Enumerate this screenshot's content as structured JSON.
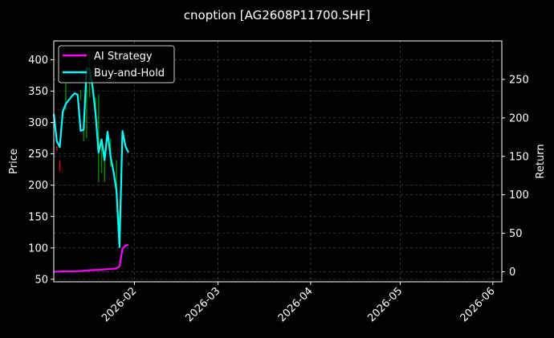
{
  "chart_data": {
    "type": "line",
    "title": "cnoption [AG2608P11700.SHF]",
    "ylabel": "Price",
    "ylabel_right": "Return",
    "xlim": [
      "2026-01-05",
      "2026-06-04"
    ],
    "ylim": [
      46,
      430
    ],
    "ylim_right": [
      -13,
      300
    ],
    "x_ticks": [
      "2026-02-01",
      "2026-03-01",
      "2026-04-01",
      "2026-05-01",
      "2026-06-01"
    ],
    "x_tick_labels": [
      "2026-02",
      "2026-03",
      "2026-04",
      "2026-05",
      "2026-06"
    ],
    "y_ticks": [
      50,
      100,
      150,
      200,
      250,
      300,
      350,
      400
    ],
    "y_ticks_right": [
      0,
      50,
      100,
      150,
      200,
      250
    ],
    "grid": true,
    "legend": {
      "position": "top-left",
      "entries": [
        "AI Strategy",
        "Buy-and-Hold"
      ]
    },
    "colors": {
      "background": "#000000",
      "ai_strategy": "#ff00ff",
      "buy_and_hold": "#00ffff",
      "candle_up": "#00ff00",
      "candle_down": "#ff0000",
      "grid": "#555555"
    },
    "candles": [
      {
        "date": "2026-01-06",
        "low": 255,
        "high": 262,
        "dir": "down"
      },
      {
        "date": "2026-01-07",
        "low": 222,
        "high": 240,
        "dir": "down"
      },
      {
        "date": "2026-01-09",
        "low": 320,
        "high": 362,
        "dir": "up"
      },
      {
        "date": "2026-01-14",
        "low": 335,
        "high": 352,
        "dir": "up"
      },
      {
        "date": "2026-01-15",
        "low": 270,
        "high": 290,
        "dir": "up"
      },
      {
        "date": "2026-01-16",
        "low": 275,
        "high": 360,
        "dir": "up"
      },
      {
        "date": "2026-01-17",
        "low": 340,
        "high": 410,
        "dir": "up"
      },
      {
        "date": "2026-01-19",
        "low": 310,
        "high": 340,
        "dir": "up"
      },
      {
        "date": "2026-01-20",
        "low": 205,
        "high": 345,
        "dir": "up"
      },
      {
        "date": "2026-01-21",
        "low": 220,
        "high": 265,
        "dir": "up"
      },
      {
        "date": "2026-01-22",
        "low": 205,
        "high": 255,
        "dir": "up"
      },
      {
        "date": "2026-01-24",
        "low": 230,
        "high": 275,
        "dir": "up"
      },
      {
        "date": "2026-01-26",
        "low": 180,
        "high": 240,
        "dir": "up"
      },
      {
        "date": "2026-01-27",
        "low": 100,
        "high": 160,
        "dir": "up"
      },
      {
        "date": "2026-01-30",
        "low": 232,
        "high": 236,
        "dir": "up"
      }
    ],
    "series": [
      {
        "name": "AI Strategy",
        "x": [
          "2026-01-05",
          "2026-01-08",
          "2026-01-11",
          "2026-01-14",
          "2026-01-17",
          "2026-01-20",
          "2026-01-23",
          "2026-01-25",
          "2026-01-26",
          "2026-01-27",
          "2026-01-28",
          "2026-01-29",
          "2026-01-30"
        ],
        "values": [
          0,
          0.5,
          0.5,
          1,
          2,
          2.5,
          3.5,
          4,
          4.5,
          7,
          30,
          34,
          35
        ]
      },
      {
        "name": "Buy-and-Hold",
        "x": [
          "2026-01-05",
          "2026-01-06",
          "2026-01-07",
          "2026-01-08",
          "2026-01-09",
          "2026-01-11",
          "2026-01-12",
          "2026-01-13",
          "2026-01-14",
          "2026-01-15",
          "2026-01-16",
          "2026-01-17",
          "2026-01-18",
          "2026-01-19",
          "2026-01-20",
          "2026-01-21",
          "2026-01-22",
          "2026-01-23",
          "2026-01-24",
          "2026-01-25",
          "2026-01-26",
          "2026-01-27",
          "2026-01-28",
          "2026-01-29",
          "2026-01-30"
        ],
        "values": [
          205,
          170,
          162,
          208,
          218,
          228,
          232,
          230,
          183,
          185,
          265,
          263,
          240,
          205,
          155,
          172,
          145,
          182,
          150,
          130,
          105,
          32,
          183,
          163,
          155
        ]
      }
    ]
  }
}
